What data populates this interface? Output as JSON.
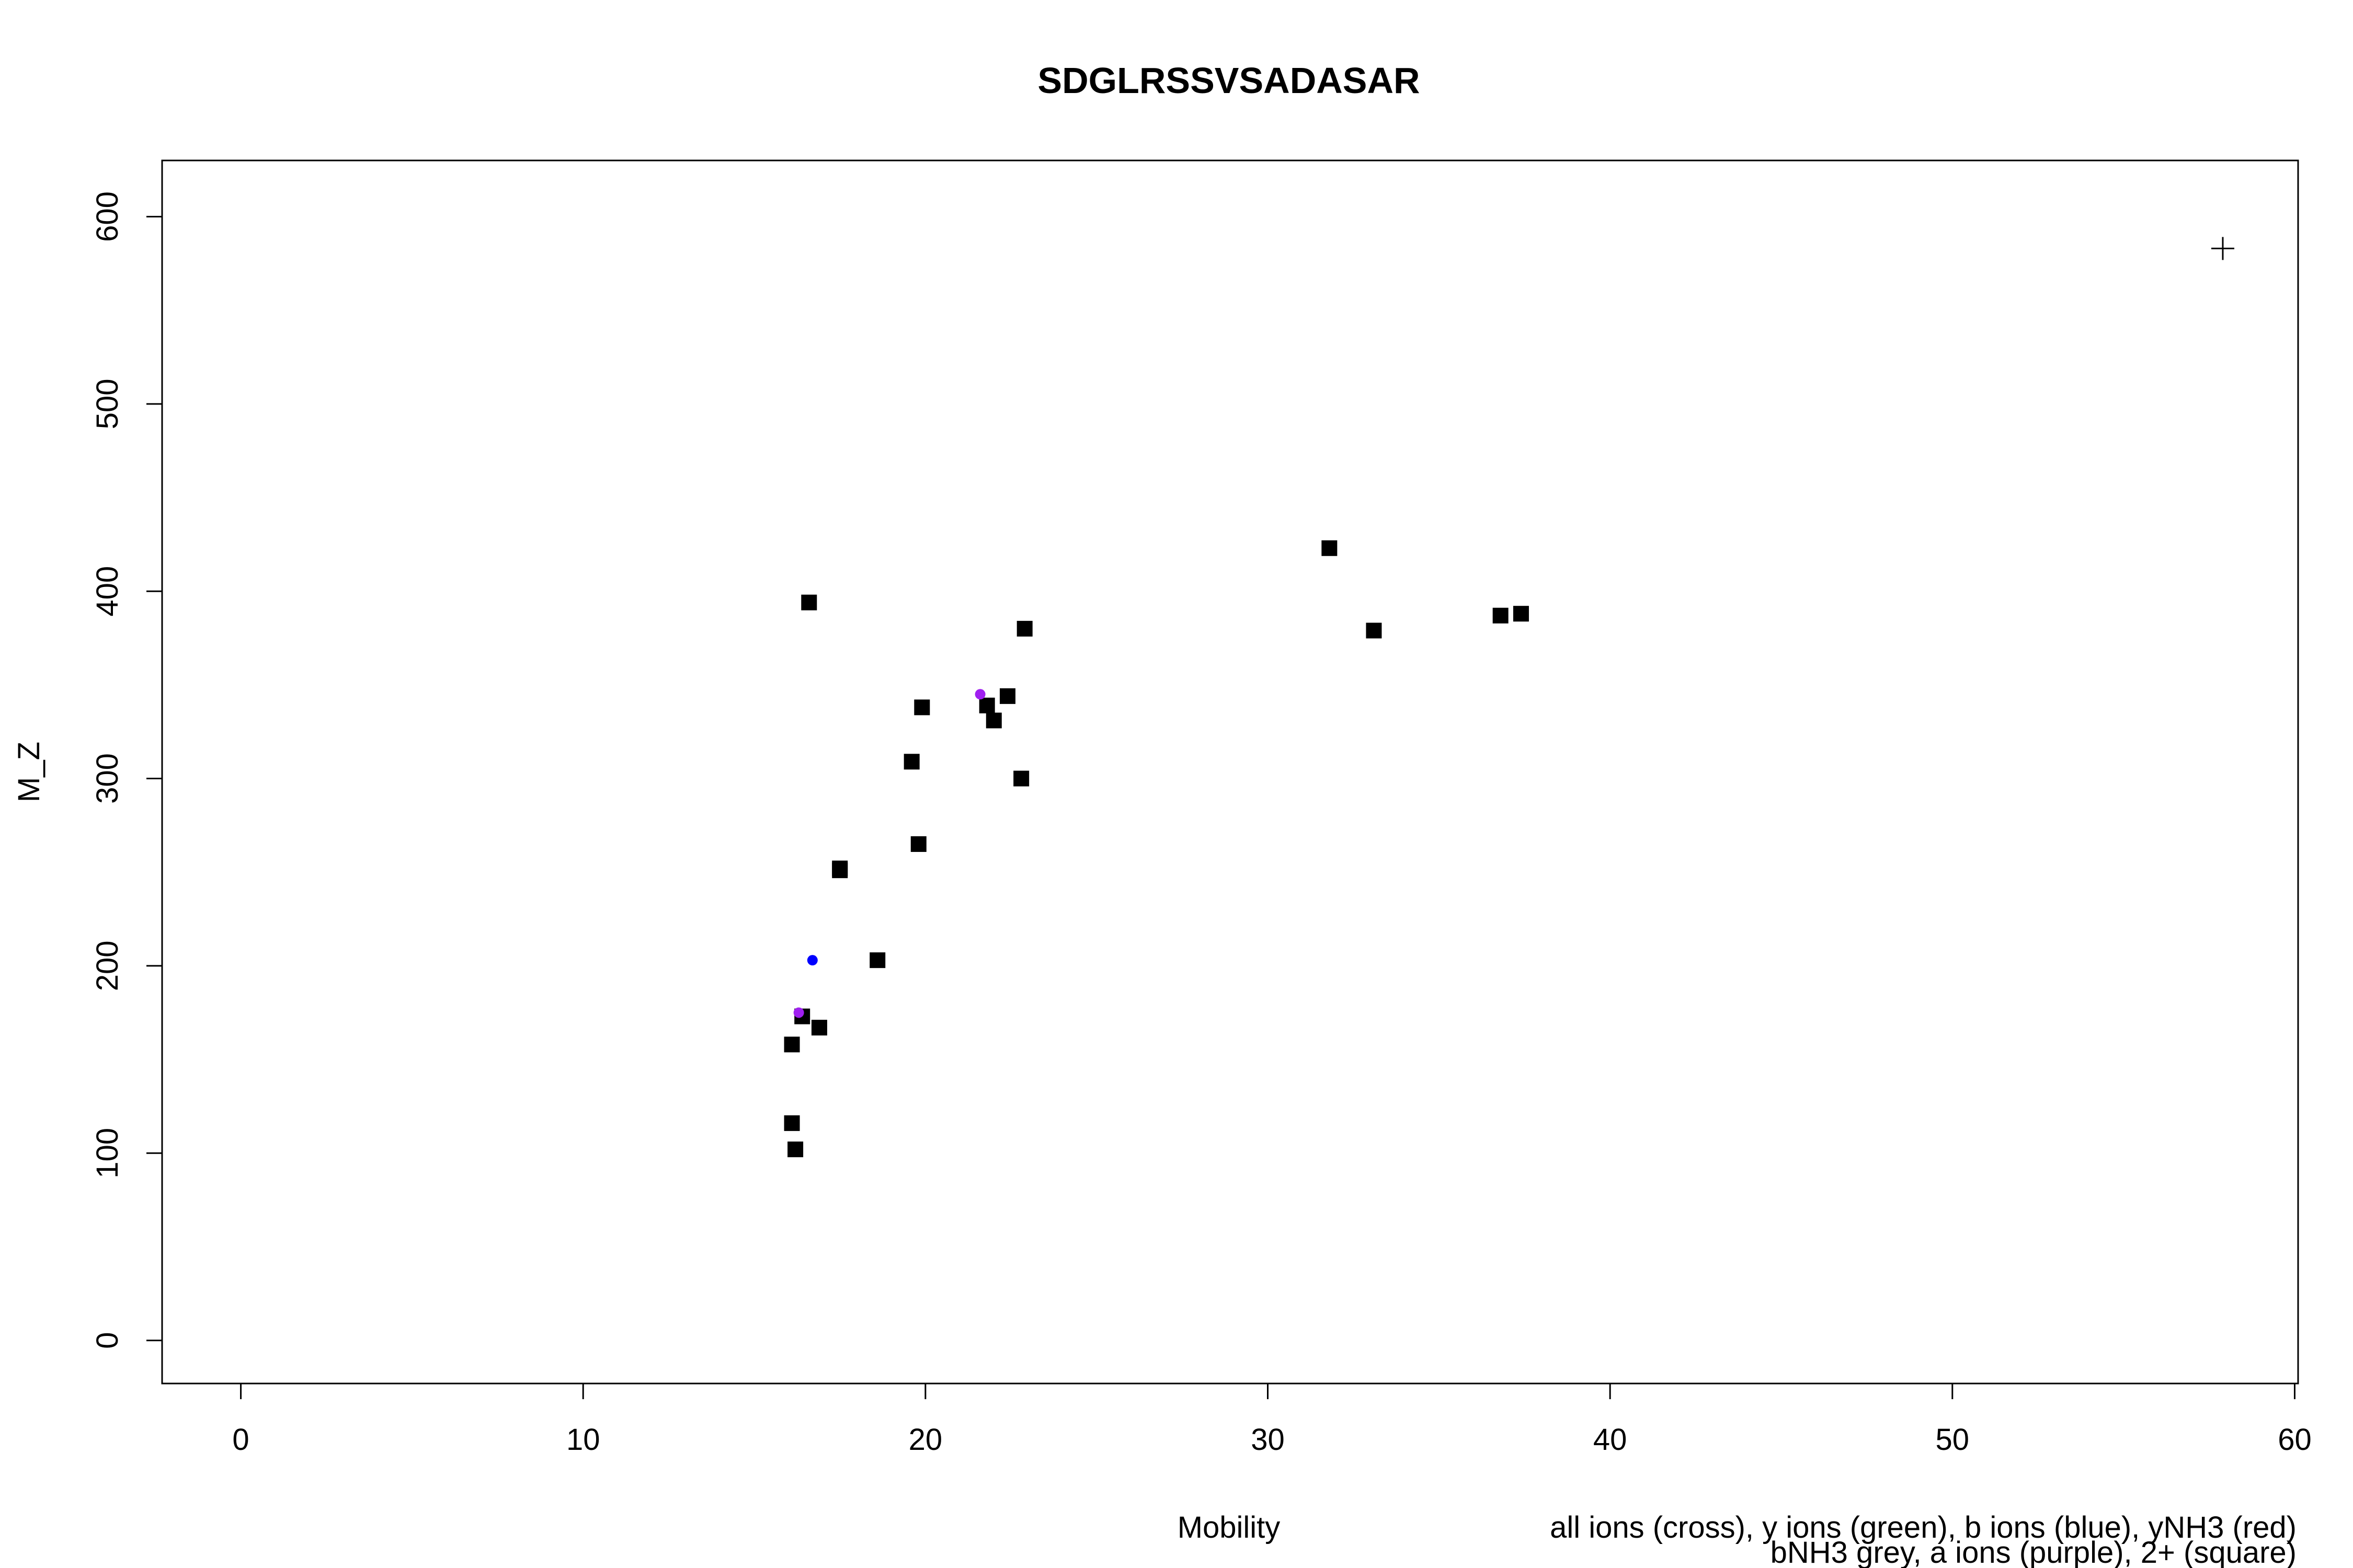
{
  "chart_data": {
    "type": "scatter",
    "title": "SDGLRSSVSADASAR",
    "xlabel": "Mobility",
    "ylabel": "M_Z",
    "xlim": [
      -2.3,
      60.1
    ],
    "ylim": [
      -23,
      630
    ],
    "xticks": [
      "0",
      "10",
      "20",
      "30",
      "40",
      "50",
      "60"
    ],
    "yticks": [
      "0",
      "100",
      "200",
      "300",
      "400",
      "500",
      "600"
    ],
    "grid": false,
    "legend_text": [
      "all ions (cross), y ions (green), b ions (blue), yNH3 (red)",
      "bNH3 grey, a ions (purple), 2+ (square)"
    ],
    "colors": {
      "square": "#000000",
      "cross": "#000000",
      "b_ion": "#0000ff",
      "a_ion": "#a020f0"
    },
    "series": [
      {
        "marker": "cross",
        "color": "#000000",
        "points": [
          [
            57.9,
            583
          ]
        ]
      },
      {
        "marker": "square",
        "color": "#000000",
        "points": [
          [
            16.6,
            394
          ],
          [
            22.9,
            380
          ],
          [
            31.8,
            423
          ],
          [
            33.1,
            379
          ],
          [
            36.8,
            387
          ],
          [
            37.4,
            388
          ],
          [
            21.8,
            339
          ],
          [
            22.4,
            344
          ],
          [
            22.0,
            331
          ],
          [
            19.9,
            338
          ],
          [
            19.6,
            309
          ],
          [
            22.8,
            300
          ],
          [
            19.8,
            265
          ],
          [
            17.5,
            252
          ],
          [
            17.5,
            251
          ],
          [
            18.6,
            203
          ],
          [
            16.4,
            173
          ],
          [
            16.9,
            167
          ],
          [
            16.1,
            158
          ],
          [
            16.1,
            116
          ],
          [
            16.2,
            102
          ]
        ]
      },
      {
        "marker": "dot",
        "color": "#0000ff",
        "points": [
          [
            16.7,
            203
          ]
        ]
      },
      {
        "marker": "dot",
        "color": "#a020f0",
        "points": [
          [
            21.6,
            345
          ],
          [
            16.3,
            175
          ]
        ]
      }
    ]
  }
}
